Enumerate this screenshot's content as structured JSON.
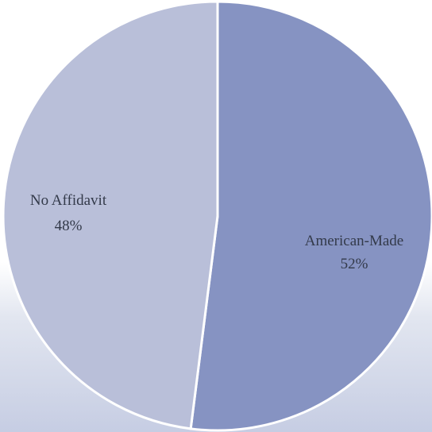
{
  "chart_data": {
    "type": "pie",
    "slices": [
      {
        "label": "American-Made",
        "value": 52,
        "value_label": "52%",
        "color": "#8693c2"
      },
      {
        "label": "No Affidavit",
        "value": 48,
        "value_label": "48%",
        "color": "#b9bfd9"
      }
    ],
    "legend": "none",
    "labels": "inside slices"
  }
}
